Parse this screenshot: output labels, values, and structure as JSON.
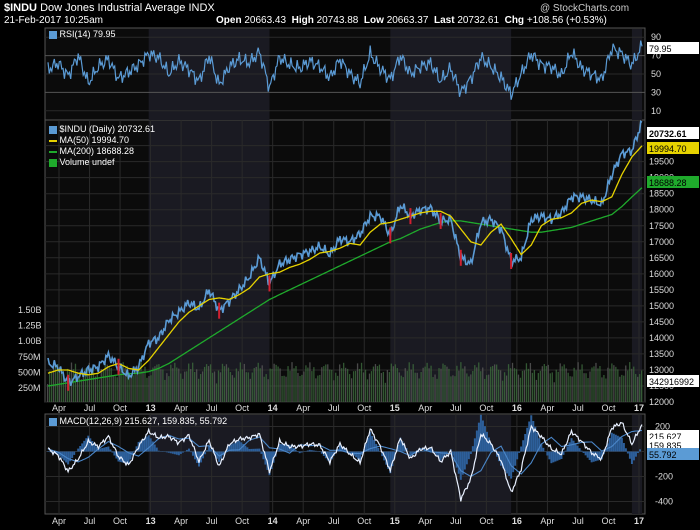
{
  "header": {
    "symbol": "$INDU",
    "name": "Dow Jones Industrial Average",
    "exchange": "INDX",
    "datetime": "21-Feb-2017 10:25am",
    "watermark": "@ StockCharts.com",
    "open_label": "Open",
    "open": "20663.43",
    "high_label": "High",
    "high": "20743.88",
    "low_label": "Low",
    "low": "20663.37",
    "last_label": "Last",
    "last": "20732.61",
    "chg_label": "Chg",
    "chg": "+108.56 (+0.53%)"
  },
  "rsi": {
    "legend": "RSI(14) 79.95",
    "current_label": "79.95",
    "levels": [
      "90",
      "70",
      "50",
      "30",
      "10"
    ]
  },
  "price": {
    "legend_main": "$INDU (Daily) 20732.61",
    "legend_ma50": "MA(50) 19994.70",
    "legend_ma200": "MA(200) 18688.28",
    "legend_volume": "Volume undef",
    "last_tag": "20732.61",
    "ma50_tag": "19994.70",
    "ma200_tag": "18688.28",
    "volume_tag": "342916992",
    "yticks": [
      "20000",
      "19500",
      "19000",
      "18500",
      "18000",
      "17500",
      "17000",
      "16500",
      "16000",
      "15500",
      "15000",
      "14500",
      "14000",
      "13500",
      "13000",
      "12500",
      "12000"
    ],
    "volume_ticks": [
      "1.50B",
      "1.25B",
      "1.00B",
      "750M",
      "500M",
      "250M"
    ]
  },
  "macd": {
    "legend": "MACD(12,26,9) 215.627, 159.835, 55.792",
    "macd_tag": "215.627",
    "signal_tag": "159.835",
    "hist_tag": "55.792",
    "yticks": [
      "200",
      "0",
      "-200",
      "-400"
    ]
  },
  "xaxis": [
    "Apr",
    "Jul",
    "Oct",
    "13",
    "Apr",
    "Jul",
    "Oct",
    "14",
    "Apr",
    "Jul",
    "Oct",
    "15",
    "Apr",
    "Jul",
    "Oct",
    "16",
    "Apr",
    "Jul",
    "Oct",
    "17"
  ],
  "colors": {
    "price": "#5b9bd5",
    "ma50": "#e6d200",
    "ma200": "#1faa2c",
    "panel": "#0d0d0d",
    "grid": "#333",
    "tag_bg": "#fff",
    "up": "#3a7bd5",
    "down": "#d02030"
  },
  "chart_data": {
    "type": "line",
    "title": "$INDU Dow Jones Industrial Average INDX",
    "x": [
      "2012-03",
      "2012-04",
      "2012-05",
      "2012-06",
      "2012-07",
      "2012-08",
      "2012-09",
      "2012-10",
      "2012-11",
      "2012-12",
      "2013-01",
      "2013-02",
      "2013-03",
      "2013-04",
      "2013-05",
      "2013-06",
      "2013-07",
      "2013-08",
      "2013-09",
      "2013-10",
      "2013-11",
      "2013-12",
      "2014-01",
      "2014-02",
      "2014-03",
      "2014-04",
      "2014-05",
      "2014-06",
      "2014-07",
      "2014-08",
      "2014-09",
      "2014-10",
      "2014-11",
      "2014-12",
      "2015-01",
      "2015-02",
      "2015-03",
      "2015-04",
      "2015-05",
      "2015-06",
      "2015-07",
      "2015-08",
      "2015-09",
      "2015-10",
      "2015-11",
      "2015-12",
      "2016-01",
      "2016-02",
      "2016-03",
      "2016-04",
      "2016-05",
      "2016-06",
      "2016-07",
      "2016-08",
      "2016-09",
      "2016-10",
      "2016-11",
      "2016-12",
      "2017-01",
      "2017-02"
    ],
    "series": [
      {
        "name": "$INDU (Daily)",
        "values": [
          13200,
          13100,
          12600,
          12800,
          13000,
          13100,
          13450,
          13100,
          12800,
          13100,
          13850,
          14000,
          14550,
          14800,
          15100,
          14900,
          15500,
          14850,
          15150,
          15500,
          15900,
          16500,
          15700,
          16300,
          16450,
          16600,
          16700,
          16850,
          16600,
          17100,
          17000,
          17250,
          17800,
          17800,
          17200,
          18150,
          17800,
          18000,
          18050,
          17650,
          17700,
          16500,
          16300,
          17600,
          17700,
          17400,
          16400,
          16500,
          17700,
          17800,
          17700,
          17900,
          18400,
          18400,
          18300,
          18150,
          19100,
          19750,
          19850,
          20730
        ]
      },
      {
        "name": "MA(50)",
        "values": [
          12900,
          13000,
          13000,
          12900,
          12850,
          12900,
          13100,
          13200,
          13050,
          13000,
          13300,
          13700,
          14100,
          14500,
          14800,
          15000,
          15200,
          15250,
          15200,
          15350,
          15550,
          15900,
          16000,
          16050,
          16200,
          16300,
          16450,
          16650,
          16700,
          16800,
          16950,
          16900,
          17300,
          17550,
          17600,
          17700,
          17800,
          17900,
          17950,
          17950,
          17800,
          17400,
          17000,
          16900,
          17300,
          17550,
          17100,
          16600,
          16900,
          17500,
          17700,
          17750,
          17900,
          18200,
          18300,
          18250,
          18400,
          19100,
          19650,
          19994
        ]
      },
      {
        "name": "MA(200)",
        "values": [
          12500,
          12550,
          12600,
          12650,
          12700,
          12750,
          12800,
          12850,
          12880,
          12900,
          12950,
          13050,
          13200,
          13400,
          13600,
          13800,
          14000,
          14200,
          14400,
          14600,
          14800,
          15000,
          15200,
          15350,
          15500,
          15650,
          15800,
          15950,
          16100,
          16250,
          16400,
          16550,
          16700,
          16850,
          17000,
          17100,
          17250,
          17400,
          17500,
          17600,
          17650,
          17650,
          17600,
          17550,
          17500,
          17450,
          17400,
          17350,
          17300,
          17300,
          17350,
          17400,
          17450,
          17550,
          17650,
          17750,
          17850,
          18100,
          18400,
          18688
        ]
      }
    ],
    "ylim": [
      12000,
      20800
    ],
    "rsi": {
      "name": "RSI(14)",
      "last": 79.95,
      "ylim": [
        0,
        100
      ],
      "values": [
        55,
        62,
        48,
        70,
        40,
        58,
        66,
        45,
        52,
        60,
        72,
        68,
        50,
        64,
        55,
        42,
        70,
        38,
        58,
        66,
        62,
        74,
        35,
        68,
        60,
        56,
        64,
        58,
        46,
        66,
        50,
        40,
        72,
        56,
        44,
        70,
        50,
        58,
        62,
        42,
        56,
        30,
        45,
        68,
        58,
        46,
        28,
        50,
        72,
        60,
        58,
        48,
        74,
        56,
        50,
        44,
        78,
        72,
        60,
        80
      ]
    },
    "macd": {
      "name": "MACD(12,26,9)",
      "macd_last": 215.627,
      "signal_last": 159.835,
      "hist_last": 55.792,
      "ylim": [
        -500,
        300
      ],
      "macd_values": [
        20,
        -30,
        -160,
        -60,
        80,
        40,
        120,
        -40,
        -110,
        40,
        160,
        110,
        120,
        70,
        130,
        -80,
        90,
        -120,
        60,
        100,
        110,
        140,
        -160,
        80,
        40,
        40,
        60,
        50,
        -80,
        60,
        -20,
        -90,
        180,
        40,
        -150,
        110,
        -60,
        20,
        30,
        -80,
        0,
        -380,
        -220,
        140,
        60,
        -70,
        -330,
        -140,
        200,
        120,
        20,
        -20,
        160,
        80,
        -10,
        -60,
        190,
        230,
        60,
        215
      ]
    }
  }
}
